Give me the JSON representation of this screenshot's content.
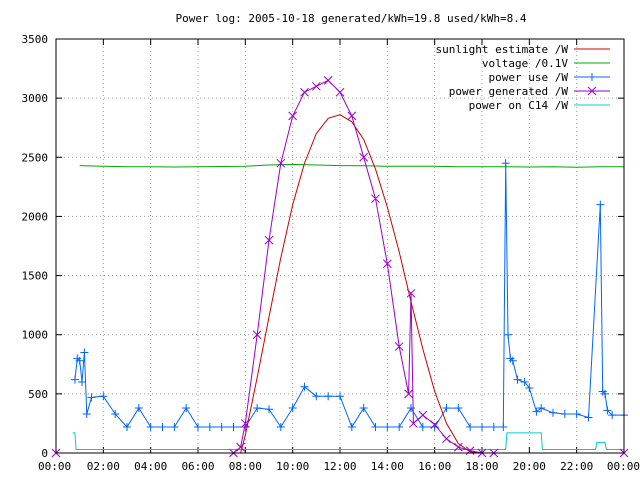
{
  "chart_data": {
    "type": "line",
    "title": "Power log: 2005-10-18 generated/kWh=19.8 used/kWh=8.4",
    "xlabel": "",
    "ylabel": "",
    "xlim": [
      "00:00",
      "24:00"
    ],
    "ylim": [
      0,
      3500
    ],
    "x_ticks": [
      "00:00",
      "02:00",
      "04:00",
      "06:00",
      "08:00",
      "10:00",
      "12:00",
      "14:00",
      "16:00",
      "18:00",
      "20:00",
      "22:00",
      "00:00"
    ],
    "y_ticks": [
      0,
      500,
      1000,
      1500,
      2000,
      2500,
      3000,
      3500
    ],
    "grid": true,
    "legend_position": "top-right",
    "series": [
      {
        "name": "sunlight estimate /W",
        "color": "#cc0000",
        "style": "line",
        "x": [
          7.8,
          8.0,
          8.5,
          9.0,
          9.5,
          10.0,
          10.5,
          11.0,
          11.5,
          12.0,
          12.5,
          13.0,
          13.5,
          14.0,
          14.5,
          15.0,
          15.5,
          16.0,
          16.5,
          17.0,
          17.5,
          17.9
        ],
        "y": [
          0,
          150,
          640,
          1150,
          1650,
          2100,
          2450,
          2700,
          2830,
          2860,
          2800,
          2650,
          2400,
          2080,
          1700,
          1280,
          880,
          520,
          250,
          80,
          10,
          0
        ]
      },
      {
        "name": "voltage /0.1V",
        "color": "#00aa00",
        "style": "line",
        "x": [
          1.0,
          2.0,
          3.0,
          4.0,
          5.0,
          6.0,
          7.0,
          8.0,
          9.0,
          10.0,
          11.0,
          12.0,
          13.0,
          14.0,
          15.0,
          16.0,
          17.0,
          18.0,
          19.0,
          20.0,
          21.0,
          22.0,
          23.0,
          24.0
        ],
        "y": [
          2430,
          2425,
          2420,
          2420,
          2418,
          2420,
          2422,
          2425,
          2435,
          2440,
          2435,
          2430,
          2428,
          2425,
          2425,
          2425,
          2420,
          2420,
          2420,
          2418,
          2420,
          2415,
          2420,
          2420
        ]
      },
      {
        "name": "power use /W",
        "color": "#0066ff",
        "style": "linespoints",
        "marker": "plus",
        "x": [
          0.8,
          0.9,
          1.0,
          1.1,
          1.2,
          1.3,
          1.5,
          2.0,
          2.5,
          3.0,
          3.5,
          4.0,
          4.5,
          5.0,
          5.5,
          6.0,
          6.5,
          7.0,
          7.5,
          8.0,
          8.5,
          9.0,
          9.5,
          10.0,
          10.5,
          11.0,
          11.5,
          12.0,
          12.5,
          13.0,
          13.5,
          14.0,
          14.5,
          15.0,
          15.5,
          16.0,
          16.5,
          17.0,
          17.5,
          18.0,
          18.5,
          18.9,
          19.0,
          19.1,
          19.2,
          19.3,
          19.5,
          19.8,
          20.0,
          20.3,
          20.5,
          21.0,
          21.5,
          22.0,
          22.5,
          23.0,
          23.1,
          23.2,
          23.3,
          23.5,
          24.0
        ],
        "y": [
          620,
          800,
          780,
          600,
          850,
          330,
          470,
          480,
          330,
          220,
          380,
          220,
          220,
          220,
          380,
          220,
          220,
          220,
          220,
          220,
          380,
          370,
          220,
          380,
          560,
          480,
          480,
          480,
          220,
          380,
          220,
          220,
          220,
          380,
          220,
          220,
          380,
          380,
          220,
          220,
          220,
          220,
          2450,
          1000,
          800,
          780,
          620,
          600,
          550,
          350,
          380,
          340,
          330,
          330,
          300,
          2100,
          520,
          500,
          360,
          320,
          320
        ]
      },
      {
        "name": "power generated /W",
        "color": "#9900cc",
        "style": "linespoints",
        "marker": "cross",
        "x": [
          0.0,
          7.5,
          7.8,
          8.0,
          8.5,
          9.0,
          9.5,
          10.0,
          10.5,
          11.0,
          11.5,
          12.0,
          12.5,
          13.0,
          13.5,
          14.0,
          14.5,
          14.9,
          15.0,
          15.1,
          15.5,
          16.0,
          16.5,
          17.0,
          17.5,
          18.0,
          18.5,
          24.0
        ],
        "y": [
          0,
          0,
          50,
          250,
          1000,
          1800,
          2450,
          2850,
          3050,
          3100,
          3150,
          3050,
          2850,
          2500,
          2150,
          1600,
          900,
          500,
          1350,
          250,
          320,
          240,
          120,
          50,
          20,
          0,
          0,
          0
        ]
      },
      {
        "name": "power on C14 /W",
        "color": "#00cccc",
        "style": "line",
        "x": [
          0.7,
          0.8,
          0.85,
          1.0,
          5.0,
          10.0,
          15.0,
          17.5,
          18.0,
          19.0,
          19.05,
          20.5,
          20.55,
          21.0,
          22.8,
          22.85,
          23.2,
          23.25,
          24.0
        ],
        "y": [
          170,
          170,
          30,
          30,
          30,
          30,
          30,
          30,
          30,
          30,
          170,
          170,
          30,
          30,
          30,
          90,
          90,
          30,
          30
        ]
      }
    ]
  }
}
